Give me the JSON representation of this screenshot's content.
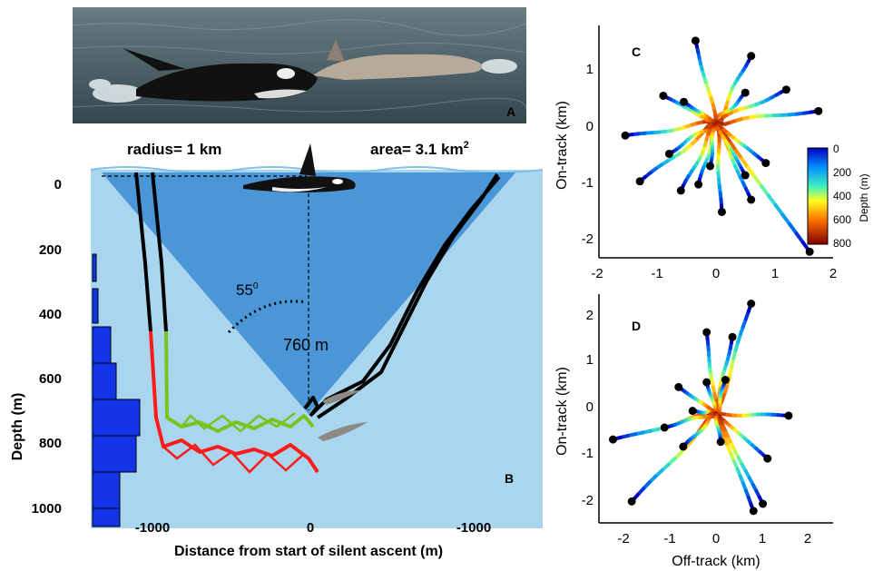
{
  "panel_a": {
    "letter": "A"
  },
  "panel_b": {
    "letter": "B",
    "radius_label": "radius= 1 km",
    "area_label_main": "area= 3.1 km",
    "area_label_sup": "2",
    "angle_label": "55",
    "angle_sup": "0",
    "depth_label": "760 m",
    "xlabel": "Distance from start of silent ascent (m)",
    "ylabel": "Depth (m)",
    "xticks": [
      "-1000",
      "0",
      "-1000"
    ],
    "yticks": [
      "0",
      "200",
      "400",
      "600",
      "800",
      "1000"
    ],
    "colors": {
      "water_light": "#a9d6ee",
      "cone": "#3f8fd4",
      "histogram": "#1233e6",
      "track_black": "#000000",
      "track_red": "#ff1a1a",
      "track_green": "#79c31e"
    }
  },
  "chart_data": [
    {
      "panel": "B",
      "type": "line",
      "xlabel": "Distance from start of silent ascent (m)",
      "ylabel": "Depth (m)",
      "ylim": [
        1000,
        0
      ],
      "series": [
        {
          "values": [
            [
              -1280,
              0
            ],
            [
              -1260,
              450
            ],
            [
              -1250,
              750
            ],
            [
              -1230,
              810
            ],
            [
              -1100,
              790
            ],
            [
              -900,
              810
            ],
            [
              -700,
              800
            ],
            [
              -500,
              770
            ],
            [
              -300,
              790
            ],
            [
              -100,
              820
            ],
            [
              0,
              820
            ],
            [
              -50,
              760
            ]
          ]
        },
        {
          "values": [
            [
              -1230,
              0
            ],
            [
              -1200,
              450
            ],
            [
              -1200,
              760
            ],
            [
              -1150,
              790
            ],
            [
              -950,
              850
            ],
            [
              -700,
              880
            ],
            [
              -500,
              850
            ],
            [
              -300,
              860
            ],
            [
              -100,
              850
            ],
            [
              0,
              880
            ]
          ]
        },
        {
          "values": [
            [
              10,
              740
            ],
            [
              200,
              600
            ],
            [
              450,
              400
            ],
            [
              650,
              200
            ],
            [
              850,
              40
            ],
            [
              950,
              0
            ]
          ]
        }
      ],
      "histogram": {
        "bins": [
          0,
          100,
          200,
          300,
          400,
          500,
          600,
          700,
          800,
          900,
          1000
        ],
        "counts": [
          0,
          0,
          1,
          1,
          3,
          4,
          4,
          7,
          5,
          3,
          3
        ]
      }
    },
    {
      "panel": "C",
      "type": "scatter",
      "xlabel": "",
      "ylabel": "On-track (km)",
      "xlim": [
        -2,
        2
      ],
      "ylim": [
        -2.2,
        1.6
      ],
      "xticks": [
        "-2",
        "-1",
        "0",
        "1",
        "2"
      ],
      "yticks": [
        "-2",
        "-1",
        "0",
        "1"
      ],
      "colorbar": {
        "label": "Depth (m)",
        "ticks": [
          "0",
          "200",
          "400",
          "600",
          "800"
        ],
        "range": [
          0,
          800
        ]
      },
      "endpoints": [
        [
          -0.35,
          1.35
        ],
        [
          0.6,
          1.1
        ],
        [
          1.75,
          0.2
        ],
        [
          1.2,
          0.55
        ],
        [
          -1.55,
          -0.2
        ],
        [
          -1.3,
          -0.95
        ],
        [
          -0.9,
          0.45
        ],
        [
          0.1,
          -1.45
        ],
        [
          1.6,
          -2.1
        ],
        [
          -0.55,
          0.35
        ],
        [
          0.5,
          0.5
        ],
        [
          -0.3,
          -1.0
        ],
        [
          0.85,
          -0.65
        ],
        [
          0.6,
          -1.25
        ],
        [
          -0.8,
          -0.5
        ],
        [
          -0.1,
          -0.7
        ],
        [
          0.5,
          -0.85
        ],
        [
          -0.6,
          -1.1
        ]
      ]
    },
    {
      "panel": "D",
      "type": "scatter",
      "xlabel": "Off-track (km)",
      "ylabel": "On-track (km)",
      "xlim": [
        -2.5,
        2.5
      ],
      "ylim": [
        -2.3,
        2.5
      ],
      "xticks": [
        "-2",
        "-1",
        "0",
        "1",
        "2"
      ],
      "yticks": [
        "-2",
        "-1",
        "0",
        "1",
        "2"
      ],
      "endpoints": [
        [
          0.75,
          2.3
        ],
        [
          -0.2,
          1.7
        ],
        [
          0.35,
          1.6
        ],
        [
          -0.8,
          0.55
        ],
        [
          -2.2,
          -0.55
        ],
        [
          -1.8,
          -1.85
        ],
        [
          1.55,
          -0.05
        ],
        [
          1.1,
          -0.95
        ],
        [
          1.0,
          -1.9
        ],
        [
          0.8,
          -2.05
        ],
        [
          -0.5,
          0.05
        ],
        [
          -0.7,
          -0.7
        ],
        [
          -0.2,
          0.65
        ],
        [
          0.2,
          0.7
        ],
        [
          -1.1,
          -0.3
        ],
        [
          0.1,
          -0.6
        ]
      ]
    }
  ],
  "panel_c": {
    "letter": "C",
    "ylabel": "On-track (km)",
    "colorbar_label": "Depth (m)",
    "xticks": [
      "-2",
      "-1",
      "0",
      "1",
      "2"
    ],
    "yticks": [
      "1",
      "0",
      "-1",
      "-2"
    ],
    "cbar_ticks": [
      "0",
      "200",
      "400",
      "600",
      "800"
    ]
  },
  "panel_d": {
    "letter": "D",
    "xlabel": "Off-track (km)",
    "ylabel": "On-track (km)",
    "xticks": [
      "-2",
      "-1",
      "0",
      "1",
      "2"
    ],
    "yticks": [
      "2",
      "1",
      "0",
      "-1",
      "-2"
    ]
  }
}
